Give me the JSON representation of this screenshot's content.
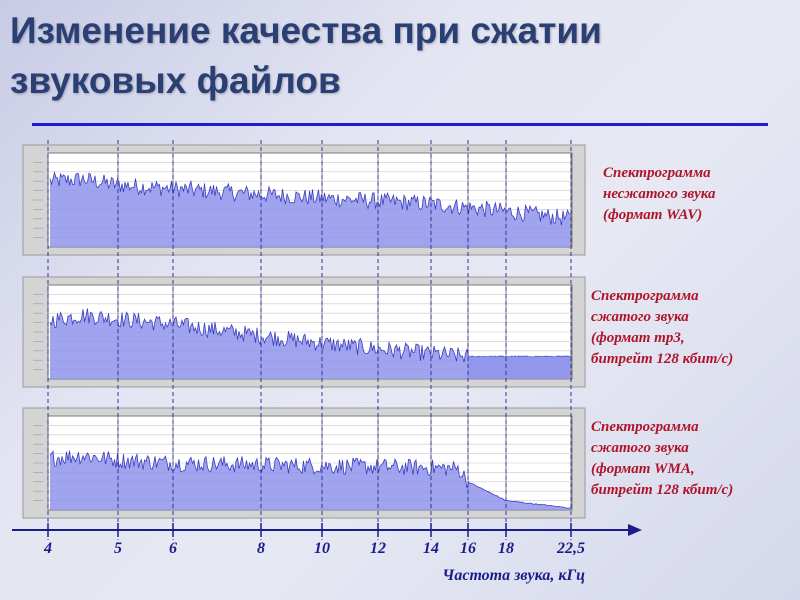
{
  "title_lines": [
    "Изменение качества при сжатии",
    "звуковых файлов"
  ],
  "colors": {
    "title": "#2a3f73",
    "rule": "#1c1cd0",
    "caption": "#b0142a",
    "spectrum_fill": "#8f93ea",
    "spectrum_line": "#3a3ec2",
    "axis": "#1b1b8a"
  },
  "chart_data": {
    "type": "area",
    "xlabel": "Частота звука, кГц",
    "x_ticks": [
      4,
      5,
      6,
      8,
      10,
      12,
      14,
      16,
      18,
      22.5
    ],
    "x_tick_labels": [
      "4",
      "5",
      "6",
      "8",
      "10",
      "12",
      "14",
      "16",
      "18",
      "22,5"
    ],
    "xlim": [
      4,
      22.5
    ],
    "panels": [
      {
        "caption_lines": [
          "Спектрограмма",
          "несжатого звука",
          "(формат WAV)"
        ],
        "cutoff_khz": 22.5,
        "envelope": [
          [
            4,
            0.7
          ],
          [
            4.5,
            0.72
          ],
          [
            5,
            0.66
          ],
          [
            6,
            0.62
          ],
          [
            8,
            0.56
          ],
          [
            10,
            0.52
          ],
          [
            12,
            0.49
          ],
          [
            14,
            0.46
          ],
          [
            16,
            0.42
          ],
          [
            18,
            0.38
          ],
          [
            22.5,
            0.3
          ]
        ]
      },
      {
        "caption_lines": [
          "Спектрограмма",
          "сжатого звука",
          "(формат mp3,",
          "битрейт 128 кбит/с)"
        ],
        "cutoff_khz": 16,
        "envelope": [
          [
            4,
            0.62
          ],
          [
            4.5,
            0.68
          ],
          [
            5,
            0.64
          ],
          [
            6,
            0.58
          ],
          [
            8,
            0.46
          ],
          [
            10,
            0.38
          ],
          [
            12,
            0.32
          ],
          [
            14,
            0.27
          ],
          [
            16,
            0.24
          ],
          [
            22.5,
            0.24
          ]
        ]
      },
      {
        "caption_lines": [
          "Спектрограмма",
          "сжатого звука",
          "(формат WMA,",
          "битрейт 128 кбит/с)"
        ],
        "cutoff_khz": 16,
        "envelope": [
          [
            4,
            0.55
          ],
          [
            4.5,
            0.58
          ],
          [
            5,
            0.53
          ],
          [
            6,
            0.5
          ],
          [
            8,
            0.48
          ],
          [
            10,
            0.47
          ],
          [
            12,
            0.46
          ],
          [
            14,
            0.45
          ],
          [
            15.5,
            0.44
          ],
          [
            16,
            0.3
          ],
          [
            18,
            0.1
          ],
          [
            22.5,
            0.02
          ]
        ]
      }
    ]
  }
}
